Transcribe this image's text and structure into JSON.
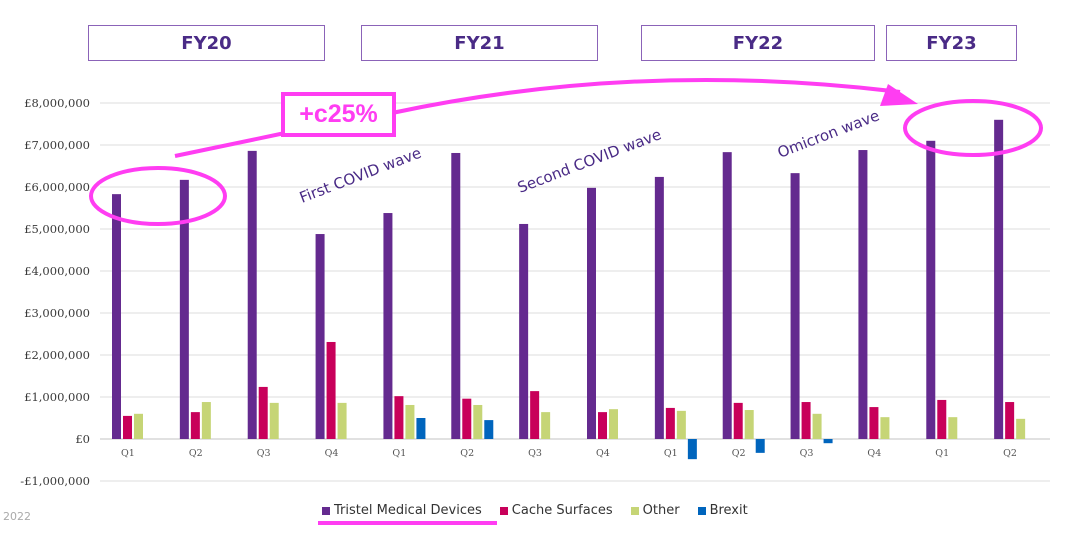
{
  "fiscal_years": [
    {
      "label": "FY20"
    },
    {
      "label": "FY21"
    },
    {
      "label": "FY22"
    },
    {
      "label": "FY23"
    }
  ],
  "annotations": {
    "growth_badge": "+c25%",
    "waves": [
      "First COVID wave",
      "Second COVID wave",
      "Omicron wave"
    ],
    "highlight_color": "#ff3df2"
  },
  "footer": {
    "year": "2022"
  },
  "chart_data": {
    "type": "bar",
    "title": "",
    "xlabel": "",
    "ylabel": "",
    "ylim": [
      -1000000,
      8000000
    ],
    "yticks": [
      -1000000,
      0,
      1000000,
      2000000,
      3000000,
      4000000,
      5000000,
      6000000,
      7000000,
      8000000
    ],
    "ytick_labels": [
      "-£1,000,000",
      "£0",
      "£1,000,000",
      "£2,000,000",
      "£3,000,000",
      "£4,000,000",
      "£5,000,000",
      "£6,000,000",
      "£7,000,000",
      "£8,000,000"
    ],
    "grid": true,
    "legend_position": "bottom",
    "categories": [
      "Q1",
      "Q2",
      "Q3",
      "Q4",
      "Q1",
      "Q2",
      "Q3",
      "Q4",
      "Q1",
      "Q2",
      "Q3",
      "Q4",
      "Q1",
      "Q2"
    ],
    "category_groups": [
      "FY20",
      "FY20",
      "FY20",
      "FY20",
      "FY21",
      "FY21",
      "FY21",
      "FY21",
      "FY22",
      "FY22",
      "FY22",
      "FY22",
      "FY23",
      "FY23"
    ],
    "series": [
      {
        "name": "Tristel Medical Devices",
        "color": "#642a8f",
        "values": [
          5830000,
          6170000,
          6860000,
          4880000,
          5380000,
          6810000,
          5120000,
          5980000,
          6240000,
          6830000,
          6330000,
          6880000,
          7100000,
          7600000
        ]
      },
      {
        "name": "Cache Surfaces",
        "color": "#c8005a",
        "values": [
          550000,
          640000,
          1240000,
          2310000,
          1020000,
          960000,
          1140000,
          640000,
          740000,
          860000,
          880000,
          760000,
          930000,
          880000
        ]
      },
      {
        "name": "Other",
        "color": "#c6d576",
        "values": [
          600000,
          880000,
          860000,
          860000,
          810000,
          810000,
          640000,
          710000,
          670000,
          690000,
          600000,
          520000,
          520000,
          480000
        ]
      },
      {
        "name": "Brexit",
        "color": "#0065bd",
        "values": [
          0,
          0,
          0,
          0,
          500000,
          450000,
          0,
          0,
          -480000,
          -330000,
          -100000,
          0,
          0,
          0
        ]
      }
    ]
  }
}
